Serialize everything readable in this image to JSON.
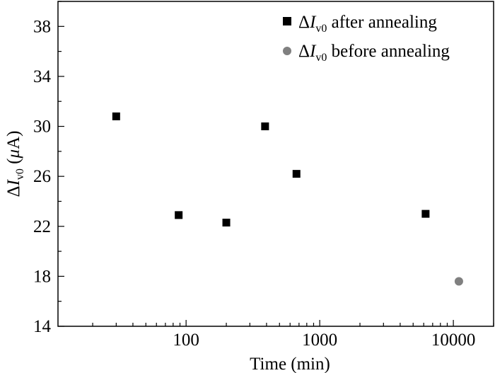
{
  "chart_data": {
    "type": "scatter",
    "title": "",
    "xlabel": "Time (min)",
    "ylabel": {
      "prefix": "Δ",
      "symbol": "I",
      "subscript": "v0",
      "unit_open": " (",
      "unit_mu": "μ",
      "unit_rest": "A)"
    },
    "xscale": "log",
    "xlim": [
      11,
      20000
    ],
    "ylim": [
      14,
      40
    ],
    "x_ticks": [
      {
        "value": 100,
        "label": "100"
      },
      {
        "value": 1000,
        "label": "1000"
      },
      {
        "value": 10000,
        "label": "10000"
      }
    ],
    "y_ticks": [
      {
        "value": 14,
        "label": "14"
      },
      {
        "value": 18,
        "label": "18"
      },
      {
        "value": 22,
        "label": "22"
      },
      {
        "value": 26,
        "label": "26"
      },
      {
        "value": 30,
        "label": "30"
      },
      {
        "value": 34,
        "label": "34"
      },
      {
        "value": 38,
        "label": "38"
      }
    ],
    "legend_position": "top-right",
    "grid": false,
    "series": [
      {
        "name": "after annealing",
        "legend": {
          "prefix": "Δ",
          "symbol": "I",
          "subscript": "v0",
          "text": " after annealing"
        },
        "marker": "square",
        "color": "#000000",
        "points": [
          {
            "x": 30,
            "y": 30.8
          },
          {
            "x": 88,
            "y": 22.9
          },
          {
            "x": 200,
            "y": 22.3
          },
          {
            "x": 390,
            "y": 30.0
          },
          {
            "x": 670,
            "y": 26.2
          },
          {
            "x": 6200,
            "y": 23.0
          }
        ]
      },
      {
        "name": "before annealing",
        "legend": {
          "prefix": "Δ",
          "symbol": "I",
          "subscript": "v0",
          "text": " before annealing"
        },
        "marker": "circle",
        "color": "#808080",
        "points": [
          {
            "x": 11000,
            "y": 17.6
          }
        ]
      }
    ]
  }
}
